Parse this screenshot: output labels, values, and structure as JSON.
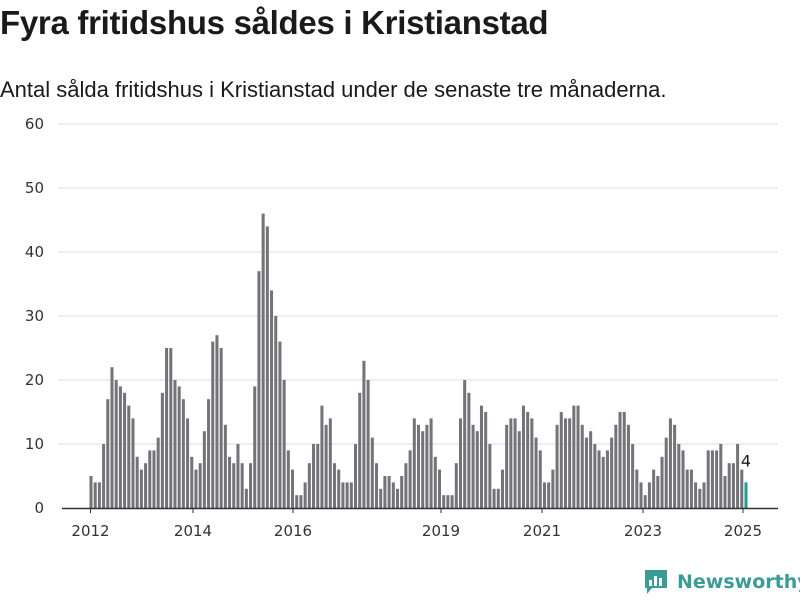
{
  "header": {
    "title": "Fyra fritidshus såldes i Kristianstad",
    "subtitle": "Antal sålda fritidshus i Kristianstad under de senaste tre månaderna."
  },
  "brand": {
    "name": "Newsworthy",
    "icon": "newsworthy-logo-icon"
  },
  "colors": {
    "bar": "#737378",
    "highlight": "#1f9e8f",
    "grid": "#dcdcdc",
    "axis": "#333333",
    "brand": "#3a9c95"
  },
  "chart_data": {
    "type": "bar",
    "ylim": [
      0,
      60
    ],
    "yticks": [
      0,
      10,
      20,
      30,
      40,
      50,
      60
    ],
    "xticks": [
      "2012",
      "2014",
      "2016",
      "2019",
      "2021",
      "2023",
      "2025"
    ],
    "grid": true,
    "highlight_label": "4",
    "values": [
      5,
      4,
      4,
      10,
      17,
      22,
      20,
      19,
      18,
      16,
      14,
      8,
      6,
      7,
      9,
      9,
      11,
      18,
      25,
      25,
      20,
      19,
      17,
      14,
      8,
      6,
      7,
      12,
      17,
      26,
      27,
      25,
      13,
      8,
      7,
      10,
      7,
      3,
      7,
      19,
      37,
      46,
      44,
      34,
      30,
      26,
      20,
      9,
      6,
      2,
      2,
      4,
      7,
      10,
      10,
      16,
      13,
      14,
      7,
      6,
      4,
      4,
      4,
      10,
      18,
      23,
      20,
      11,
      7,
      3,
      5,
      5,
      4,
      3,
      5,
      7,
      9,
      14,
      13,
      12,
      13,
      14,
      8,
      6,
      2,
      2,
      2,
      7,
      14,
      20,
      18,
      13,
      12,
      16,
      15,
      10,
      3,
      3,
      6,
      13,
      14,
      14,
      12,
      16,
      15,
      14,
      11,
      9,
      4,
      4,
      6,
      13,
      15,
      14,
      14,
      16,
      16,
      13,
      11,
      12,
      10,
      9,
      8,
      9,
      11,
      13,
      15,
      15,
      13,
      10,
      6,
      4,
      2,
      4,
      6,
      5,
      8,
      11,
      14,
      13,
      10,
      9,
      6,
      6,
      4,
      3,
      4,
      9,
      9,
      9,
      10,
      5,
      7,
      7,
      10,
      6,
      4
    ]
  }
}
